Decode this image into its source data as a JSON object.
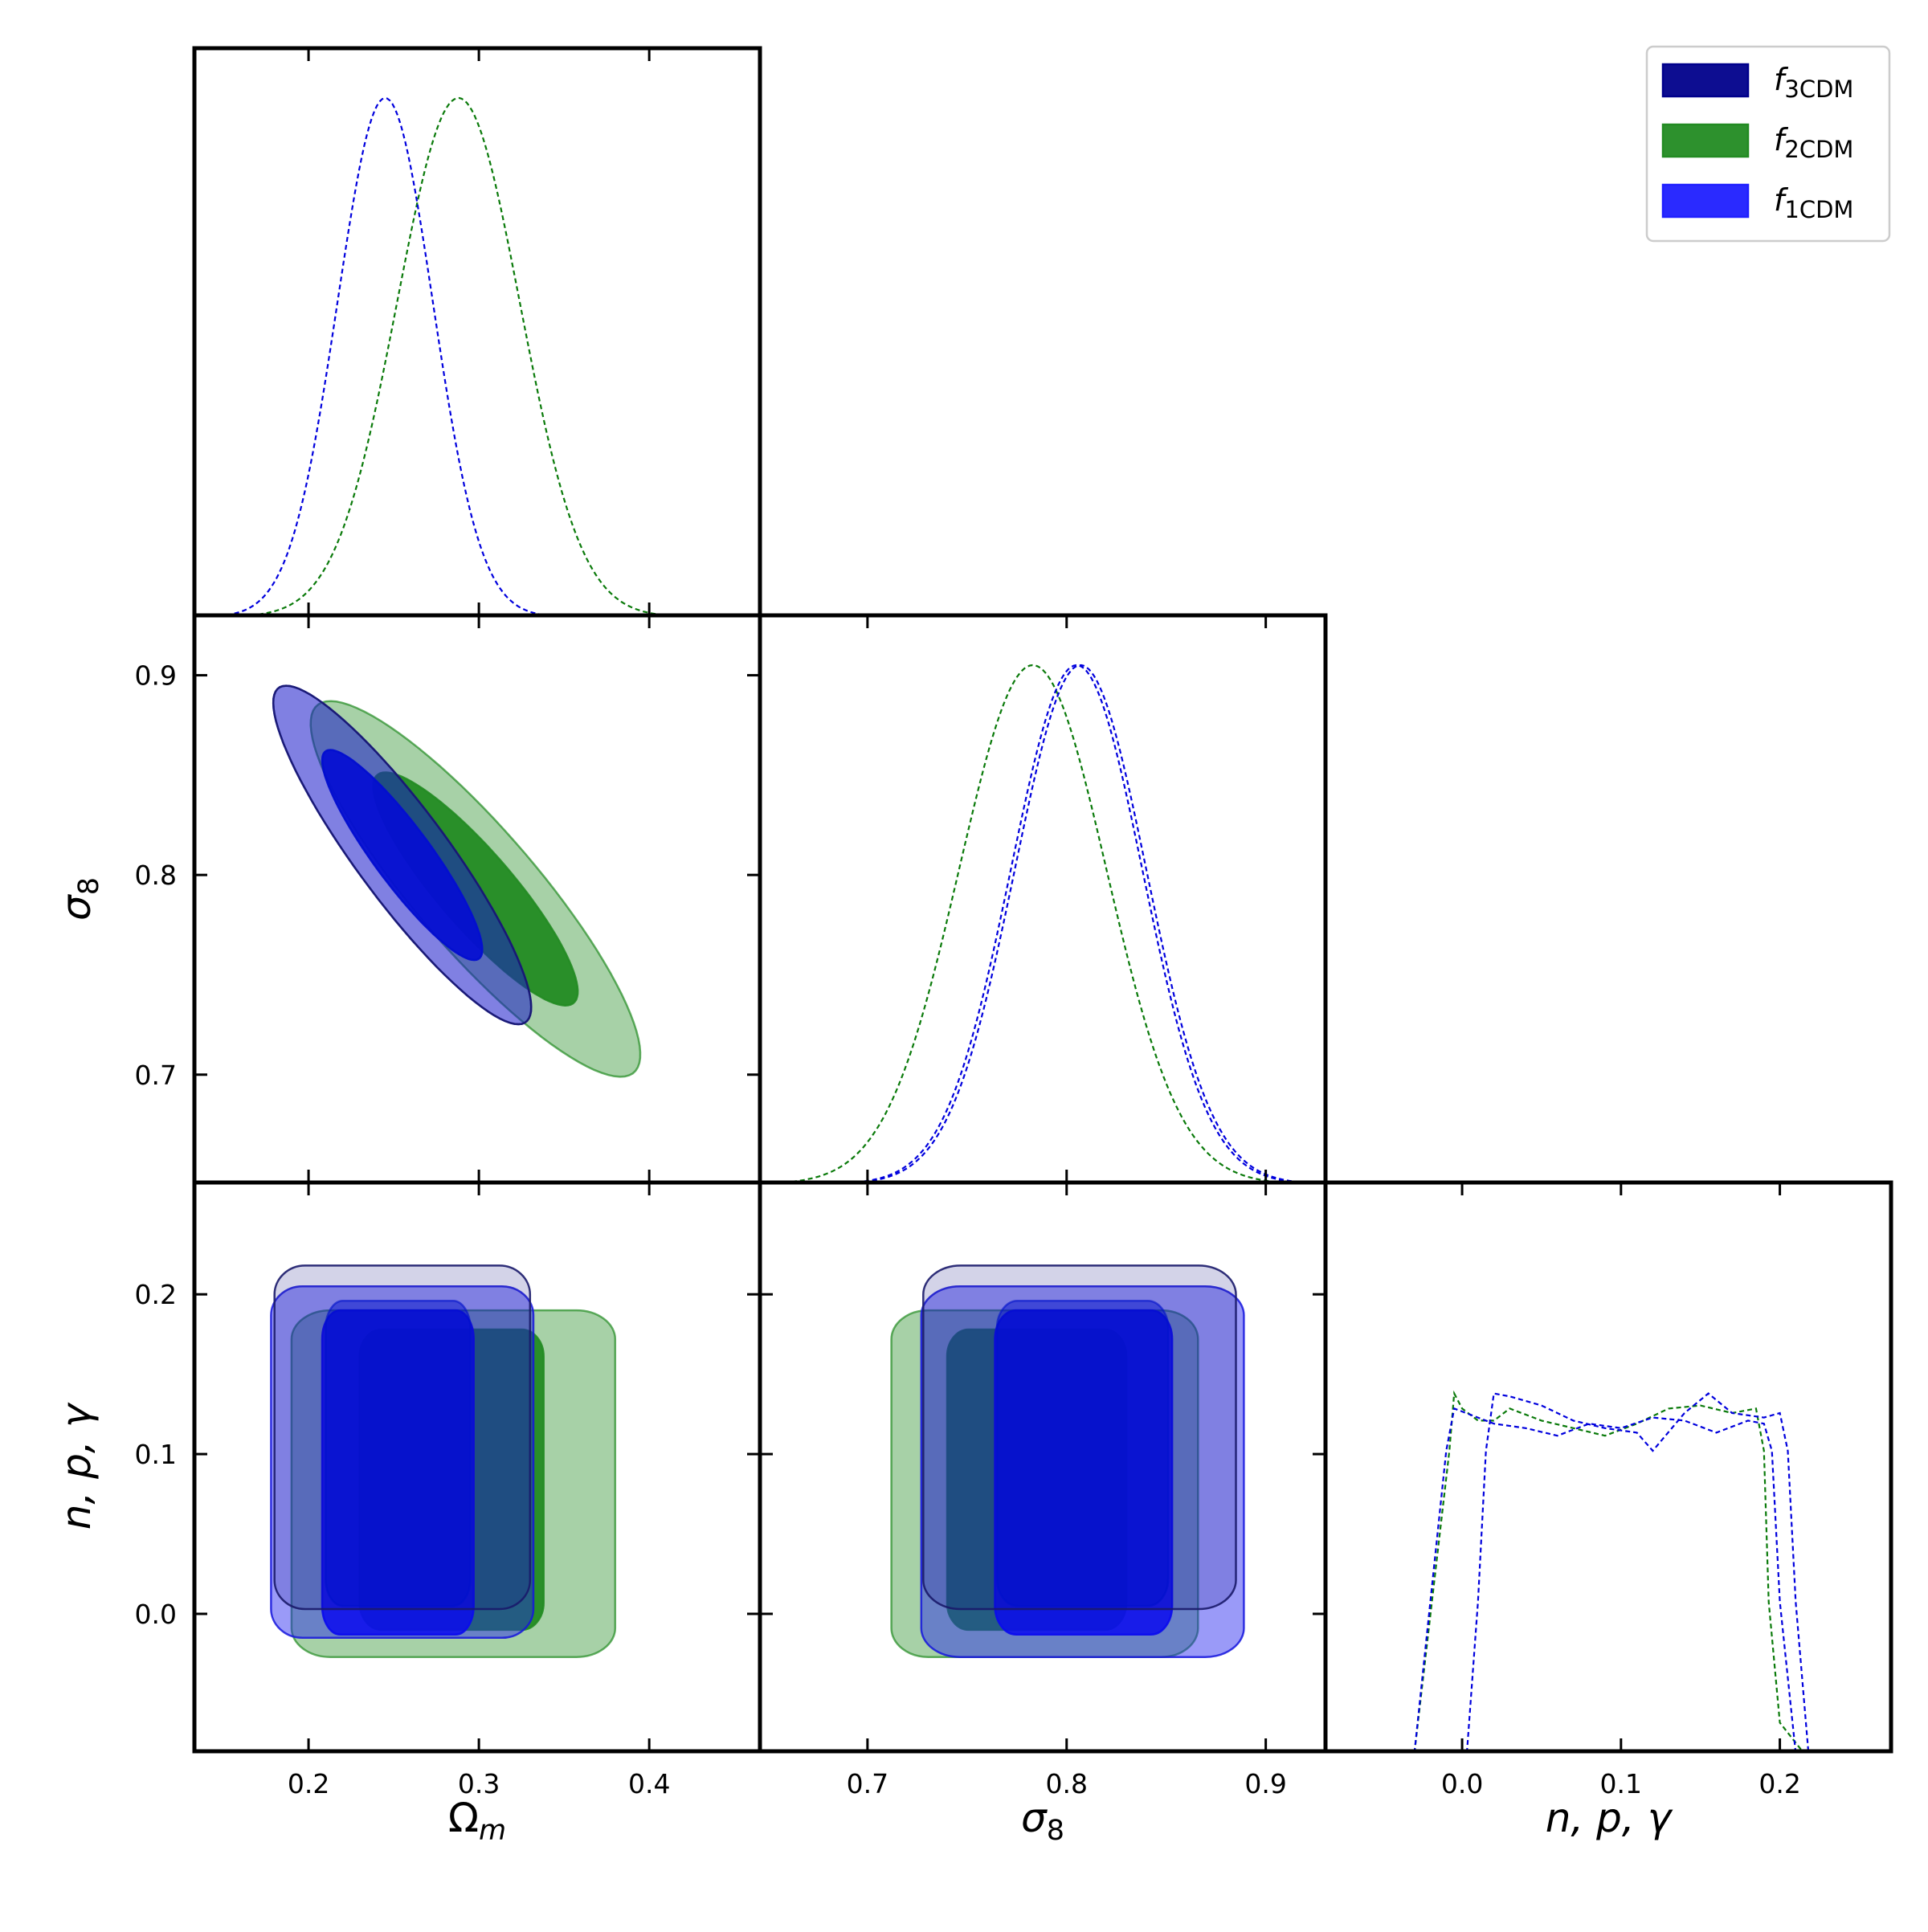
{
  "chart_data": {
    "type": "triangle-corner-plot",
    "parameters": [
      {
        "key": "om",
        "label_main": "Ω",
        "label_sub": "m",
        "range": [
          0.133,
          0.465
        ],
        "ticks": [
          0.2,
          0.3,
          0.4
        ],
        "tick_labels": [
          "0.2",
          "0.3",
          "0.4"
        ]
      },
      {
        "key": "s8",
        "label_main": "σ",
        "label_sub": "8",
        "range": [
          0.646,
          0.93
        ],
        "ticks": [
          0.7,
          0.8,
          0.9
        ],
        "tick_labels": [
          "0.7",
          "0.8",
          "0.9"
        ]
      },
      {
        "key": "npg",
        "label_text": "n, p, γ",
        "range": [
          -0.086,
          0.27
        ],
        "ticks": [
          0.0,
          0.1,
          0.2
        ],
        "tick_labels": [
          "0.0",
          "0.1",
          "0.2"
        ]
      }
    ],
    "legend": {
      "placement": "top-right",
      "entries": [
        {
          "label_main": "f",
          "label_sub": "3CDM",
          "color": "#00008b"
        },
        {
          "label_main": "f",
          "label_sub": "2CDM",
          "color": "#228b22"
        },
        {
          "label_main": "f",
          "label_sub": "1CDM",
          "color": "#1f1fff"
        }
      ]
    },
    "colors": {
      "f3CDM": "#00008b",
      "f2CDM": "#228b22",
      "f1CDM": "#1f1fff",
      "line_f2": "#0a7a0a",
      "line_f1": "#0000dd"
    },
    "marginals": {
      "om": [
        {
          "model": "f2CDM",
          "mean": 0.288,
          "sigma": 0.036
        },
        {
          "model": "f1CDM",
          "mean": 0.245,
          "sigma": 0.028
        }
      ],
      "s8": [
        {
          "model": "f2CDM",
          "mean": 0.783,
          "sigma": 0.037
        },
        {
          "model": "f1CDM",
          "mean": 0.805,
          "sigma": 0.033
        },
        {
          "model": "f3CDM",
          "mean": 0.807,
          "sigma": 0.033
        }
      ],
      "npg": [
        {
          "model": "f2CDM",
          "x": [
            -0.03,
            -0.008,
            -0.005,
            0.0,
            0.01,
            0.02,
            0.03,
            0.05,
            0.07,
            0.09,
            0.11,
            0.13,
            0.15,
            0.17,
            0.185,
            0.19,
            0.193,
            0.2,
            0.215
          ],
          "y": [
            0,
            0.2,
            0.238,
            0.228,
            0.22,
            0.22,
            0.228,
            0.22,
            0.215,
            0.21,
            0.218,
            0.228,
            0.23,
            0.225,
            0.228,
            0.2,
            0.1,
            0.02,
            0
          ]
        },
        {
          "model": "f1CDM",
          "x": [
            -0.03,
            -0.01,
            -0.005,
            0.0,
            0.02,
            0.04,
            0.06,
            0.08,
            0.1,
            0.12,
            0.14,
            0.16,
            0.18,
            0.19,
            0.195,
            0.2,
            0.21
          ],
          "y": [
            0,
            0.2,
            0.228,
            0.226,
            0.218,
            0.215,
            0.21,
            0.218,
            0.215,
            0.222,
            0.22,
            0.212,
            0.22,
            0.218,
            0.2,
            0.1,
            0
          ]
        },
        {
          "model": "f3CDM",
          "x": [
            0.003,
            0.01,
            0.015,
            0.02,
            0.03,
            0.05,
            0.07,
            0.09,
            0.11,
            0.12,
            0.14,
            0.155,
            0.17,
            0.19,
            0.2,
            0.205,
            0.21,
            0.218
          ],
          "y": [
            0,
            0.1,
            0.2,
            0.238,
            0.236,
            0.23,
            0.22,
            0.215,
            0.212,
            0.2,
            0.225,
            0.238,
            0.225,
            0.222,
            0.225,
            0.2,
            0.1,
            0
          ]
        }
      ]
    },
    "contours": {
      "om_s8": [
        {
          "model": "f2CDM",
          "level": "2sigma",
          "center": [
            0.298,
            0.793
          ],
          "sigma_x": 0.0395,
          "sigma_y": 0.0384,
          "rho": -0.88
        },
        {
          "model": "f2CDM",
          "level": "1sigma",
          "center": [
            0.298,
            0.793
          ],
          "sigma_x": 0.0395,
          "sigma_y": 0.0384,
          "rho": -0.88
        },
        {
          "model": "f1CDM",
          "level": "2sigma",
          "center": [
            0.255,
            0.81
          ],
          "sigma_x": 0.0309,
          "sigma_y": 0.0346,
          "rho": -0.9
        },
        {
          "model": "f1CDM",
          "level": "1sigma",
          "center": [
            0.255,
            0.81
          ],
          "sigma_x": 0.0309,
          "sigma_y": 0.0346,
          "rho": -0.9
        },
        {
          "model": "f3CDM",
          "level": "2sigma",
          "center": [
            0.255,
            0.81
          ],
          "sigma_x": 0.0309,
          "sigma_y": 0.0346,
          "rho": -0.9
        },
        {
          "model": "f3CDM",
          "level": "1sigma",
          "center": [
            0.255,
            0.81
          ],
          "sigma_x": 0.0309,
          "sigma_y": 0.0346,
          "rho": -0.9
        }
      ],
      "om_npg": [
        {
          "model": "f2CDM",
          "level": "2sigma",
          "x": [
            0.19,
            0.38
          ],
          "y": [
            -0.027,
            0.19
          ]
        },
        {
          "model": "f2CDM",
          "level": "1sigma",
          "x": [
            0.23,
            0.338
          ],
          "y": [
            -0.01,
            0.178
          ]
        },
        {
          "model": "f1CDM",
          "level": "2sigma",
          "x": [
            0.178,
            0.332
          ],
          "y": [
            -0.015,
            0.205
          ]
        },
        {
          "model": "f1CDM",
          "level": "1sigma",
          "x": [
            0.208,
            0.297
          ],
          "y": [
            -0.013,
            0.19
          ]
        },
        {
          "model": "f3CDM",
          "level": "2sigma",
          "x": [
            0.18,
            0.33
          ],
          "y": [
            0.003,
            0.218
          ]
        },
        {
          "model": "f3CDM",
          "level": "1sigma",
          "x": [
            0.21,
            0.295
          ],
          "y": [
            0.005,
            0.196
          ]
        }
      ],
      "s8_npg": [
        {
          "model": "f2CDM",
          "level": "2sigma",
          "x": [
            0.712,
            0.866
          ],
          "y": [
            -0.027,
            0.19
          ]
        },
        {
          "model": "f2CDM",
          "level": "1sigma",
          "x": [
            0.74,
            0.83
          ],
          "y": [
            -0.01,
            0.178
          ]
        },
        {
          "model": "f1CDM",
          "level": "2sigma",
          "x": [
            0.727,
            0.889
          ],
          "y": [
            -0.027,
            0.205
          ]
        },
        {
          "model": "f1CDM",
          "level": "1sigma",
          "x": [
            0.764,
            0.853
          ],
          "y": [
            -0.013,
            0.19
          ]
        },
        {
          "model": "f3CDM",
          "level": "2sigma",
          "x": [
            0.728,
            0.885
          ],
          "y": [
            0.003,
            0.218
          ]
        },
        {
          "model": "f3CDM",
          "level": "1sigma",
          "x": [
            0.765,
            0.851
          ],
          "y": [
            0.005,
            0.196
          ]
        }
      ]
    }
  }
}
